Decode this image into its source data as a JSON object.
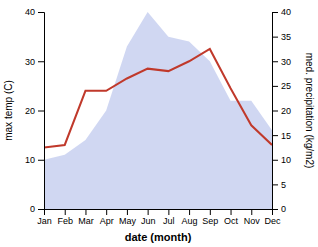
{
  "chart_data": {
    "type": "line",
    "categories": [
      "Jan",
      "Feb",
      "Mar",
      "Apr",
      "May",
      "Jun",
      "Jul",
      "Aug",
      "Sep",
      "Oct",
      "Nov",
      "Dec"
    ],
    "x_label": "date (month)",
    "y_label": "max temp (C)",
    "y2_label": "med. precipitation (kg/m2)",
    "series": [
      {
        "type": "area",
        "axis": "y2",
        "color": "#c8d0f0",
        "values": [
          10,
          11,
          14,
          20,
          33,
          40,
          35,
          34,
          30,
          22,
          22,
          16
        ]
      },
      {
        "type": "line",
        "color": "#c0392b",
        "values": [
          12.5,
          13.0,
          24.0,
          24.0,
          26.5,
          28.5,
          28.0,
          30.0,
          32.5,
          24.5,
          17.0,
          13.0
        ]
      }
    ],
    "ylim": [
      0,
      40
    ],
    "yticks": [
      0,
      10,
      20,
      30,
      40
    ],
    "y2lim": [
      0,
      40
    ],
    "y2ticks": [
      0,
      5,
      10,
      15,
      20,
      25,
      30,
      35,
      40
    ],
    "grid": false
  }
}
